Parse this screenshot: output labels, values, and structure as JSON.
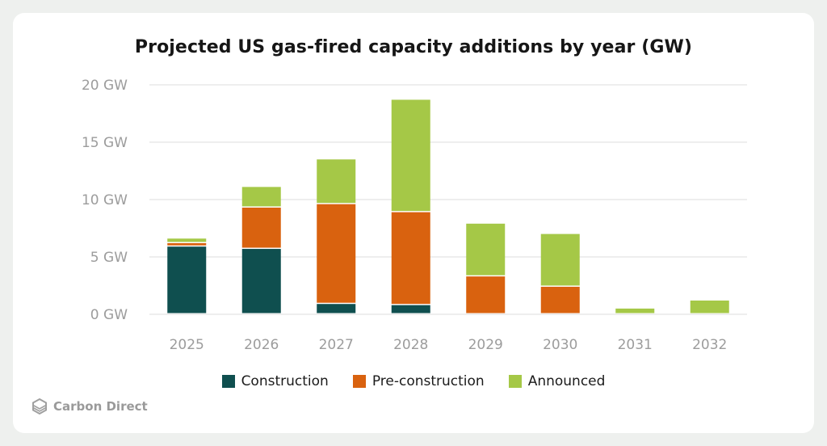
{
  "chart_data": {
    "type": "bar",
    "stacked": true,
    "title": "Projected US gas-fired capacity additions by year (GW)",
    "categories": [
      "2025",
      "2026",
      "2027",
      "2028",
      "2029",
      "2030",
      "2031",
      "2032"
    ],
    "series": [
      {
        "name": "Construction",
        "color": "#0f4f4f",
        "values": [
          5.9,
          5.7,
          0.9,
          0.8,
          0,
          0,
          0,
          0
        ]
      },
      {
        "name": "Pre-construction",
        "color": "#d9620f",
        "values": [
          0.3,
          3.6,
          8.7,
          8.1,
          3.3,
          2.4,
          0,
          0
        ]
      },
      {
        "name": "Announced",
        "color": "#a5c847",
        "values": [
          0.4,
          1.8,
          3.9,
          9.8,
          4.6,
          4.6,
          0.5,
          1.2
        ]
      }
    ],
    "ylim": [
      0,
      20
    ],
    "yticks": [
      "0 GW",
      "5 GW",
      "10 GW",
      "15 GW",
      "20 GW"
    ],
    "grid": true,
    "legend_position": "bottom"
  },
  "brand": {
    "name": "Carbon Direct",
    "icon": "carbon-direct-logo-icon"
  }
}
